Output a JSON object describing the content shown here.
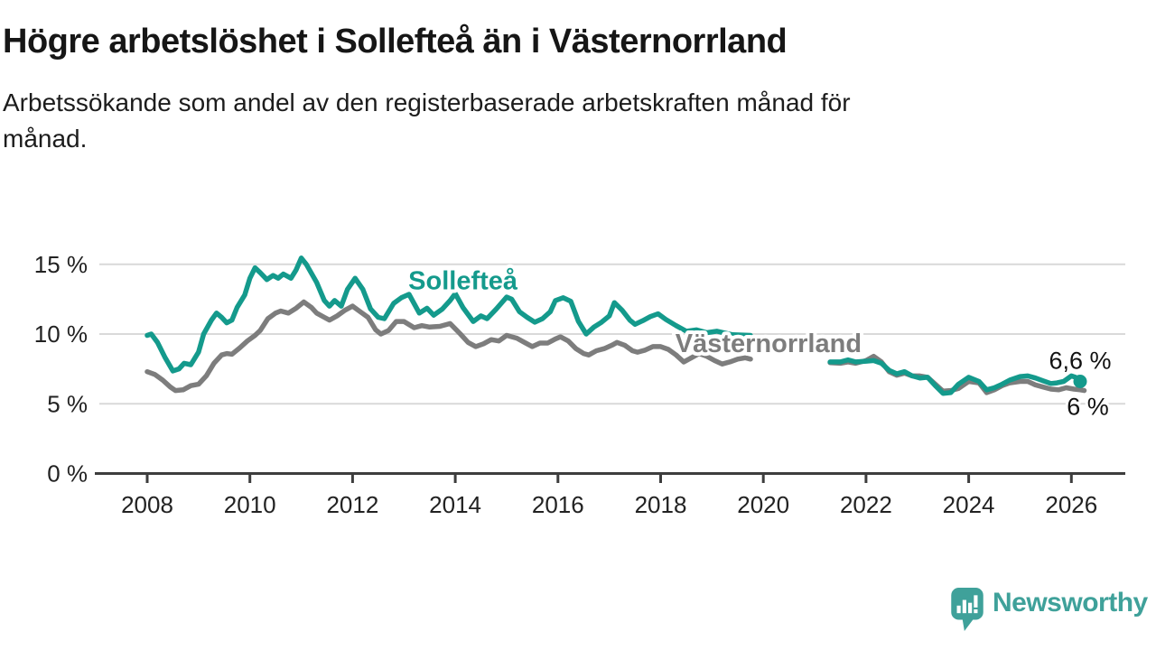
{
  "branding": {
    "name": "Newsworthy",
    "color": "#3fa19a"
  },
  "chart_data": {
    "type": "line",
    "title": "Högre arbetslöshet i Sollefteå än i Västernorrland",
    "subtitle": "Arbetssökande som andel av den registerbaserade arbetskraften månad för\nmånad.",
    "unit": "%",
    "grid": "horizontal",
    "legend_position": "inline-labels",
    "colors": {
      "grid": "#d9d9d9",
      "axis": "#3d3d3d",
      "axis_text": "#222222",
      "annotation_text": "#111111",
      "background": "#ffffff"
    },
    "x_axis": {
      "range": [
        2007.2,
        2027.05
      ],
      "ticks": [
        {
          "value": 2008,
          "label": "2008"
        },
        {
          "value": 2010,
          "label": "2010"
        },
        {
          "value": 2012,
          "label": "2012"
        },
        {
          "value": 2014,
          "label": "2014"
        },
        {
          "value": 2016,
          "label": "2016"
        },
        {
          "value": 2018,
          "label": "2018"
        },
        {
          "value": 2020,
          "label": "2020"
        },
        {
          "value": 2022,
          "label": "2022"
        },
        {
          "value": 2024,
          "label": "2024"
        },
        {
          "value": 2026,
          "label": "2026"
        }
      ]
    },
    "y_axis": {
      "range": [
        0,
        15.8
      ],
      "ticks": [
        {
          "value": 0,
          "label": "0 %"
        },
        {
          "value": 5,
          "label": "5 %"
        },
        {
          "value": 10,
          "label": "10 %"
        },
        {
          "value": 15,
          "label": "15 %"
        }
      ]
    },
    "series": [
      {
        "id": "vasternorrland",
        "name": "Västernorrland",
        "color": "#7d7d7d",
        "end_label": "6 %",
        "end_value": 6.0,
        "end_dot": false,
        "end_label_position": "below",
        "label_pos": {
          "year": 2020.1,
          "value": 9.35
        },
        "segments": [
          [
            [
              2008.0,
              7.3
            ],
            [
              2008.15,
              7.1
            ],
            [
              2008.3,
              6.7
            ],
            [
              2008.45,
              6.2
            ],
            [
              2008.55,
              5.95
            ],
            [
              2008.7,
              6.0
            ],
            [
              2008.85,
              6.3
            ],
            [
              2009.0,
              6.4
            ],
            [
              2009.15,
              7.0
            ],
            [
              2009.3,
              7.9
            ],
            [
              2009.45,
              8.5
            ],
            [
              2009.55,
              8.6
            ],
            [
              2009.65,
              8.55
            ],
            [
              2009.8,
              9.0
            ],
            [
              2009.95,
              9.5
            ],
            [
              2010.1,
              9.9
            ],
            [
              2010.2,
              10.25
            ],
            [
              2010.35,
              11.1
            ],
            [
              2010.5,
              11.5
            ],
            [
              2010.6,
              11.65
            ],
            [
              2010.75,
              11.5
            ],
            [
              2010.9,
              11.85
            ],
            [
              2011.05,
              12.3
            ],
            [
              2011.2,
              11.9
            ],
            [
              2011.3,
              11.5
            ],
            [
              2011.45,
              11.2
            ],
            [
              2011.55,
              11.0
            ],
            [
              2011.7,
              11.3
            ],
            [
              2011.85,
              11.7
            ],
            [
              2012.0,
              12.0
            ],
            [
              2012.15,
              11.6
            ],
            [
              2012.3,
              11.2
            ],
            [
              2012.45,
              10.3
            ],
            [
              2012.55,
              10.0
            ],
            [
              2012.7,
              10.25
            ],
            [
              2012.85,
              10.9
            ],
            [
              2013.0,
              10.9
            ],
            [
              2013.2,
              10.45
            ],
            [
              2013.35,
              10.6
            ],
            [
              2013.5,
              10.5
            ],
            [
              2013.7,
              10.55
            ],
            [
              2013.9,
              10.75
            ],
            [
              2014.1,
              10.0
            ],
            [
              2014.25,
              9.4
            ],
            [
              2014.4,
              9.1
            ],
            [
              2014.55,
              9.3
            ],
            [
              2014.7,
              9.6
            ],
            [
              2014.85,
              9.5
            ],
            [
              2015.0,
              9.9
            ],
            [
              2015.2,
              9.7
            ],
            [
              2015.35,
              9.4
            ],
            [
              2015.5,
              9.1
            ],
            [
              2015.65,
              9.35
            ],
            [
              2015.8,
              9.35
            ],
            [
              2015.95,
              9.65
            ],
            [
              2016.05,
              9.8
            ],
            [
              2016.2,
              9.5
            ],
            [
              2016.35,
              8.95
            ],
            [
              2016.5,
              8.6
            ],
            [
              2016.6,
              8.5
            ],
            [
              2016.75,
              8.8
            ],
            [
              2016.9,
              8.95
            ],
            [
              2017.05,
              9.2
            ],
            [
              2017.15,
              9.4
            ],
            [
              2017.3,
              9.2
            ],
            [
              2017.45,
              8.8
            ],
            [
              2017.55,
              8.7
            ],
            [
              2017.7,
              8.85
            ],
            [
              2017.85,
              9.1
            ],
            [
              2018.0,
              9.1
            ],
            [
              2018.15,
              8.9
            ],
            [
              2018.3,
              8.5
            ],
            [
              2018.45,
              8.0
            ],
            [
              2018.6,
              8.3
            ],
            [
              2018.75,
              8.6
            ],
            [
              2018.9,
              8.4
            ],
            [
              2019.05,
              8.1
            ],
            [
              2019.2,
              7.85
            ],
            [
              2019.35,
              8.0
            ],
            [
              2019.5,
              8.2
            ],
            [
              2019.65,
              8.3
            ],
            [
              2019.75,
              8.2
            ]
          ],
          [
            [
              2021.3,
              7.95
            ],
            [
              2021.5,
              7.9
            ],
            [
              2021.65,
              8.0
            ],
            [
              2021.8,
              7.9
            ],
            [
              2022.0,
              8.1
            ],
            [
              2022.15,
              8.4
            ],
            [
              2022.3,
              8.0
            ],
            [
              2022.45,
              7.3
            ],
            [
              2022.6,
              7.05
            ],
            [
              2022.75,
              7.2
            ],
            [
              2022.9,
              7.0
            ],
            [
              2023.05,
              7.0
            ],
            [
              2023.2,
              6.9
            ],
            [
              2023.35,
              6.4
            ],
            [
              2023.5,
              5.9
            ],
            [
              2023.65,
              5.95
            ],
            [
              2023.8,
              6.1
            ],
            [
              2024.0,
              6.6
            ],
            [
              2024.2,
              6.5
            ],
            [
              2024.35,
              5.8
            ],
            [
              2024.5,
              6.0
            ],
            [
              2024.65,
              6.3
            ],
            [
              2024.8,
              6.5
            ],
            [
              2025.0,
              6.6
            ],
            [
              2025.15,
              6.6
            ],
            [
              2025.3,
              6.35
            ],
            [
              2025.45,
              6.2
            ],
            [
              2025.6,
              6.05
            ],
            [
              2025.75,
              6.0
            ],
            [
              2025.9,
              6.15
            ],
            [
              2026.05,
              6.05
            ],
            [
              2026.17,
              6.0
            ],
            [
              2026.25,
              5.95
            ]
          ]
        ]
      },
      {
        "id": "solleftea",
        "name": "Sollefteå",
        "color": "#149a8c",
        "end_label": "6,6 %",
        "end_value": 6.6,
        "end_dot": true,
        "end_label_position": "above",
        "label_pos": {
          "year": 2014.15,
          "value": 13.85
        },
        "segments": [
          [
            [
              2008.0,
              9.9
            ],
            [
              2008.08,
              10.0
            ],
            [
              2008.2,
              9.4
            ],
            [
              2008.35,
              8.3
            ],
            [
              2008.5,
              7.35
            ],
            [
              2008.62,
              7.5
            ],
            [
              2008.72,
              7.9
            ],
            [
              2008.85,
              7.8
            ],
            [
              2009.0,
              8.7
            ],
            [
              2009.1,
              10.0
            ],
            [
              2009.25,
              11.0
            ],
            [
              2009.35,
              11.5
            ],
            [
              2009.45,
              11.2
            ],
            [
              2009.55,
              10.8
            ],
            [
              2009.65,
              11.0
            ],
            [
              2009.75,
              11.9
            ],
            [
              2009.9,
              12.8
            ],
            [
              2010.0,
              14.0
            ],
            [
              2010.1,
              14.75
            ],
            [
              2010.2,
              14.4
            ],
            [
              2010.33,
              13.9
            ],
            [
              2010.45,
              14.2
            ],
            [
              2010.55,
              14.0
            ],
            [
              2010.65,
              14.3
            ],
            [
              2010.8,
              14.0
            ],
            [
              2010.9,
              14.6
            ],
            [
              2011.0,
              15.45
            ],
            [
              2011.1,
              15.0
            ],
            [
              2011.3,
              13.7
            ],
            [
              2011.45,
              12.4
            ],
            [
              2011.55,
              12.0
            ],
            [
              2011.65,
              12.4
            ],
            [
              2011.78,
              12.0
            ],
            [
              2011.9,
              13.2
            ],
            [
              2012.05,
              14.0
            ],
            [
              2012.2,
              13.2
            ],
            [
              2012.35,
              11.8
            ],
            [
              2012.5,
              11.2
            ],
            [
              2012.62,
              11.1
            ],
            [
              2012.8,
              12.2
            ],
            [
              2012.95,
              12.6
            ],
            [
              2013.1,
              12.85
            ],
            [
              2013.3,
              11.5
            ],
            [
              2013.45,
              11.85
            ],
            [
              2013.58,
              11.35
            ],
            [
              2013.75,
              11.8
            ],
            [
              2013.9,
              12.4
            ],
            [
              2014.0,
              12.9
            ],
            [
              2014.15,
              11.9
            ],
            [
              2014.35,
              10.9
            ],
            [
              2014.5,
              11.3
            ],
            [
              2014.62,
              11.1
            ],
            [
              2014.8,
              11.8
            ],
            [
              2015.0,
              12.65
            ],
            [
              2015.1,
              12.5
            ],
            [
              2015.25,
              11.6
            ],
            [
              2015.4,
              11.2
            ],
            [
              2015.55,
              10.85
            ],
            [
              2015.7,
              11.1
            ],
            [
              2015.85,
              11.6
            ],
            [
              2015.95,
              12.4
            ],
            [
              2016.1,
              12.6
            ],
            [
              2016.25,
              12.35
            ],
            [
              2016.4,
              10.9
            ],
            [
              2016.55,
              10.0
            ],
            [
              2016.7,
              10.5
            ],
            [
              2016.85,
              10.85
            ],
            [
              2017.0,
              11.3
            ],
            [
              2017.1,
              12.25
            ],
            [
              2017.25,
              11.7
            ],
            [
              2017.4,
              11.0
            ],
            [
              2017.5,
              10.7
            ],
            [
              2017.65,
              10.95
            ],
            [
              2017.8,
              11.25
            ],
            [
              2017.95,
              11.45
            ],
            [
              2018.1,
              11.05
            ],
            [
              2018.3,
              10.6
            ],
            [
              2018.5,
              10.2
            ],
            [
              2018.7,
              10.3
            ],
            [
              2018.9,
              10.1
            ],
            [
              2019.1,
              10.2
            ],
            [
              2019.4,
              9.95
            ],
            [
              2019.75,
              9.9
            ]
          ],
          [
            [
              2021.3,
              8.0
            ],
            [
              2021.5,
              8.0
            ],
            [
              2021.65,
              8.15
            ],
            [
              2021.8,
              8.0
            ],
            [
              2022.0,
              8.05
            ],
            [
              2022.15,
              8.1
            ],
            [
              2022.3,
              7.9
            ],
            [
              2022.45,
              7.4
            ],
            [
              2022.6,
              7.15
            ],
            [
              2022.75,
              7.3
            ],
            [
              2022.9,
              7.0
            ],
            [
              2023.05,
              6.85
            ],
            [
              2023.2,
              6.9
            ],
            [
              2023.35,
              6.3
            ],
            [
              2023.5,
              5.75
            ],
            [
              2023.65,
              5.8
            ],
            [
              2023.8,
              6.4
            ],
            [
              2024.0,
              6.9
            ],
            [
              2024.2,
              6.6
            ],
            [
              2024.35,
              6.0
            ],
            [
              2024.5,
              6.15
            ],
            [
              2024.65,
              6.4
            ],
            [
              2024.8,
              6.7
            ],
            [
              2025.0,
              6.95
            ],
            [
              2025.15,
              7.0
            ],
            [
              2025.3,
              6.85
            ],
            [
              2025.45,
              6.65
            ],
            [
              2025.6,
              6.45
            ],
            [
              2025.72,
              6.5
            ],
            [
              2025.85,
              6.6
            ],
            [
              2026.0,
              7.0
            ],
            [
              2026.08,
              6.9
            ],
            [
              2026.17,
              6.6
            ]
          ]
        ]
      }
    ]
  }
}
